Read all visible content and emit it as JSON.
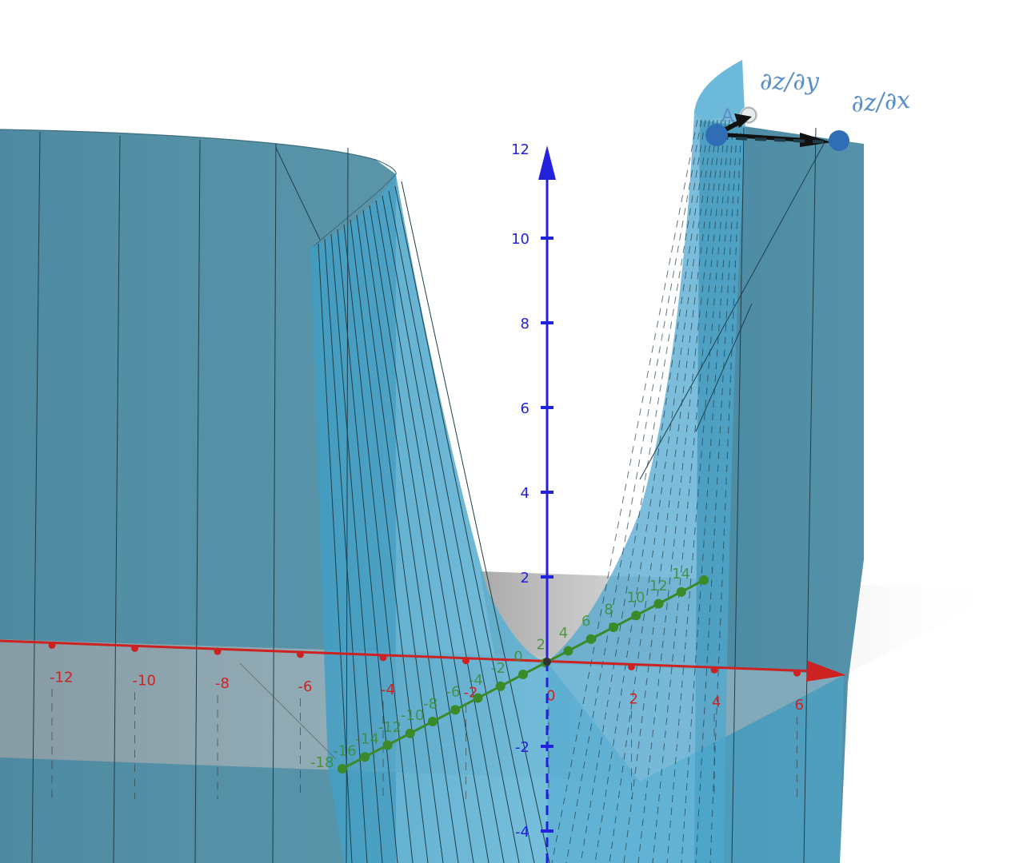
{
  "scene": {
    "kind": "GeoGebra 3D graphics view",
    "surface_color": "#3c8eb0",
    "axes": {
      "x": {
        "color": "#cc2222",
        "tick_labels": [
          "-12",
          "-10",
          "-8",
          "-6",
          "-4",
          "-2",
          "0",
          "2",
          "4",
          "6"
        ]
      },
      "y": {
        "color": "#3a8a2a",
        "tick_labels": [
          "-18",
          "-16",
          "-14",
          "-12",
          "-10",
          "-8",
          "-6",
          "-4",
          "-2",
          "0",
          "2",
          "4",
          "6",
          "8",
          "10",
          "12",
          "14"
        ]
      },
      "z": {
        "color": "#2222dd",
        "tick_labels": [
          "12",
          "10",
          "8",
          "6",
          "4",
          "2",
          "-2",
          "-4"
        ]
      }
    },
    "point": {
      "label": "A",
      "color": "#2f6db5"
    },
    "vectors": {
      "dzdy": "∂z/∂y",
      "dzdx": "∂z/∂x",
      "label_color": "#5b8fc8"
    }
  }
}
